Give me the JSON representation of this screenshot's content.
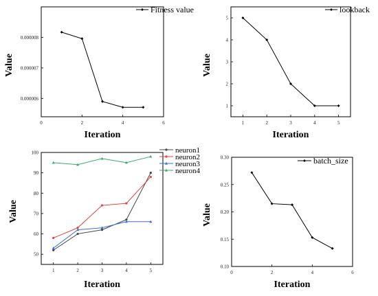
{
  "chart_data": [
    {
      "type": "line",
      "xlabel": "Iteration",
      "ylabel": "Value",
      "xlim": [
        0,
        6
      ],
      "ylim": [
        5.4e-06,
        9e-06
      ],
      "xticks": [
        0,
        2,
        4,
        6
      ],
      "yticks": [
        6e-06,
        7e-06,
        8e-06
      ],
      "ytick_labels": [
        "0.000006",
        "0.000007",
        "0.000008"
      ],
      "legend_position": "top-right",
      "series": [
        {
          "name": "Fitness value",
          "color": "#000000",
          "marker": "diamond",
          "x": [
            1,
            2,
            3,
            4,
            5
          ],
          "values": [
            8.17e-06,
            7.96e-06,
            5.9e-06,
            5.71e-06,
            5.71e-06
          ]
        }
      ]
    },
    {
      "type": "line",
      "xlabel": "Iteration",
      "ylabel": "Value",
      "xlim": [
        0.5,
        5.5
      ],
      "ylim": [
        0.5,
        5.5
      ],
      "xticks": [
        1,
        2,
        3,
        4,
        5
      ],
      "yticks": [
        1,
        2,
        3,
        4,
        5
      ],
      "legend_position": "top-right",
      "series": [
        {
          "name": "lookback",
          "color": "#000000",
          "marker": "diamond",
          "x": [
            1,
            2,
            3,
            4,
            5
          ],
          "values": [
            5,
            4,
            2,
            1,
            1
          ]
        }
      ]
    },
    {
      "type": "line",
      "xlabel": "Iteration",
      "ylabel": "Value",
      "xlim": [
        0.5,
        5.5
      ],
      "ylim": [
        45,
        100
      ],
      "xticks": [
        1,
        2,
        3,
        4,
        5
      ],
      "yticks": [
        50,
        60,
        70,
        80,
        90,
        100
      ],
      "legend_position": "top-right",
      "series": [
        {
          "name": "neuron1",
          "color": "#444444",
          "marker": "circle",
          "x": [
            1,
            2,
            3,
            4,
            5
          ],
          "values": [
            52,
            60,
            62,
            67,
            90
          ]
        },
        {
          "name": "neuron2",
          "color": "#e8403a",
          "marker": "circle",
          "x": [
            1,
            2,
            3,
            4,
            5
          ],
          "values": [
            58,
            63,
            74,
            75,
            88
          ]
        },
        {
          "name": "neuron3",
          "color": "#3a6fd8",
          "marker": "triangle",
          "x": [
            1,
            2,
            3,
            4,
            5
          ],
          "values": [
            53,
            62,
            63,
            66,
            66
          ]
        },
        {
          "name": "neuron4",
          "color": "#3aaa6a",
          "marker": "triangle",
          "x": [
            1,
            2,
            3,
            4,
            5
          ],
          "values": [
            95,
            94,
            97,
            95,
            98
          ]
        }
      ]
    },
    {
      "type": "line",
      "xlabel": "Iteration",
      "ylabel": "Value",
      "xlim": [
        0,
        6
      ],
      "ylim": [
        0.1,
        0.3
      ],
      "xticks": [
        0,
        2,
        4,
        6
      ],
      "yticks": [
        0.1,
        0.15,
        0.2,
        0.25,
        0.3
      ],
      "ytick_labels": [
        "0.10",
        "0.15",
        "0.20",
        "0.25",
        "0.30"
      ],
      "legend_position": "top-right",
      "series": [
        {
          "name": "batch_size",
          "color": "#000000",
          "marker": "diamond",
          "x": [
            1,
            2,
            3,
            4,
            5
          ],
          "values": [
            0.272,
            0.215,
            0.213,
            0.153,
            0.133
          ]
        }
      ]
    }
  ]
}
